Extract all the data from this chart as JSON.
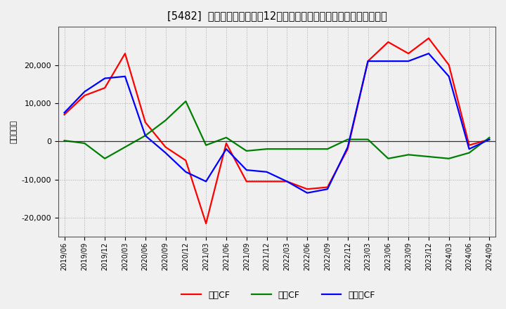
{
  "title": "[5482]  キャッシュフローの12か月移動合計の対前年同期増減額の推移",
  "ylabel": "（百万円）",
  "background_color": "#f0f0f0",
  "plot_bg_color": "#f0f0f0",
  "grid_color": "#aaaaaa",
  "x_labels": [
    "2019/06",
    "2019/09",
    "2019/12",
    "2020/03",
    "2020/06",
    "2020/09",
    "2020/12",
    "2021/03",
    "2021/06",
    "2021/09",
    "2021/12",
    "2022/03",
    "2022/06",
    "2022/09",
    "2022/12",
    "2023/03",
    "2023/06",
    "2023/09",
    "2023/12",
    "2024/03",
    "2024/06",
    "2024/09"
  ],
  "operating_cf": [
    7000,
    12000,
    14000,
    23000,
    5000,
    -1500,
    -5000,
    -21500,
    -500,
    -10500,
    -10500,
    -10500,
    -12500,
    -12000,
    -2000,
    21000,
    26000,
    23000,
    27000,
    20000,
    -1000,
    500
  ],
  "investing_cf": [
    200,
    -500,
    -4500,
    -1500,
    1500,
    5500,
    10500,
    -1000,
    1000,
    -2500,
    -2000,
    -2000,
    -2000,
    -2000,
    500,
    500,
    -4500,
    -3500,
    -4000,
    -4500,
    -3000,
    1000
  ],
  "free_cf": [
    7500,
    13000,
    16500,
    17000,
    1500,
    -3000,
    -8000,
    -10500,
    -2000,
    -7500,
    -8000,
    -10500,
    -13500,
    -12500,
    -1500,
    21000,
    21000,
    21000,
    23000,
    17000,
    -2000,
    500
  ],
  "operating_color": "#ff0000",
  "investing_color": "#008000",
  "free_color": "#0000ff",
  "ylim": [
    -25000,
    30000
  ],
  "yticks": [
    -20000,
    -10000,
    0,
    10000,
    20000
  ],
  "line_width": 1.6
}
